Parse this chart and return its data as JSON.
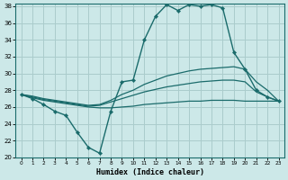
{
  "background_color": "#cce8e8",
  "grid_color": "#aacccc",
  "line_color": "#1a6b6b",
  "xlabel": "Humidex (Indice chaleur)",
  "x_hours": [
    0,
    1,
    2,
    3,
    4,
    5,
    6,
    7,
    8,
    9,
    10,
    11,
    12,
    13,
    14,
    15,
    16,
    17,
    18,
    19,
    20,
    21,
    22,
    23
  ],
  "series_main": [
    27.5,
    27.0,
    26.3,
    25.5,
    25.0,
    23.0,
    21.2,
    20.5,
    25.5,
    29.0,
    29.2,
    34.0,
    36.8,
    38.2,
    37.5,
    38.2,
    38.0,
    38.2,
    37.8,
    32.5,
    30.5,
    28.0,
    27.2,
    26.7
  ],
  "series_upper": [
    27.5,
    27.3,
    27.0,
    26.8,
    26.6,
    26.4,
    26.2,
    26.3,
    26.8,
    27.5,
    28.0,
    28.7,
    29.2,
    29.7,
    30.0,
    30.3,
    30.5,
    30.6,
    30.7,
    30.8,
    30.5,
    29.0,
    28.0,
    26.7
  ],
  "series_mid": [
    27.5,
    27.2,
    26.9,
    26.7,
    26.5,
    26.3,
    26.1,
    26.2,
    26.6,
    27.0,
    27.4,
    27.8,
    28.1,
    28.4,
    28.6,
    28.8,
    29.0,
    29.1,
    29.2,
    29.2,
    29.0,
    27.8,
    27.2,
    26.7
  ],
  "series_lower": [
    27.5,
    27.1,
    26.8,
    26.6,
    26.4,
    26.2,
    26.0,
    25.9,
    25.9,
    26.0,
    26.1,
    26.3,
    26.4,
    26.5,
    26.6,
    26.7,
    26.7,
    26.8,
    26.8,
    26.8,
    26.7,
    26.7,
    26.7,
    26.7
  ],
  "ylim_min": 20,
  "ylim_max": 38,
  "yticks": [
    20,
    22,
    24,
    26,
    28,
    30,
    32,
    34,
    36,
    38
  ],
  "xticks": [
    0,
    1,
    2,
    3,
    4,
    5,
    6,
    7,
    8,
    9,
    10,
    11,
    12,
    13,
    14,
    15,
    16,
    17,
    18,
    19,
    20,
    21,
    22,
    23
  ]
}
